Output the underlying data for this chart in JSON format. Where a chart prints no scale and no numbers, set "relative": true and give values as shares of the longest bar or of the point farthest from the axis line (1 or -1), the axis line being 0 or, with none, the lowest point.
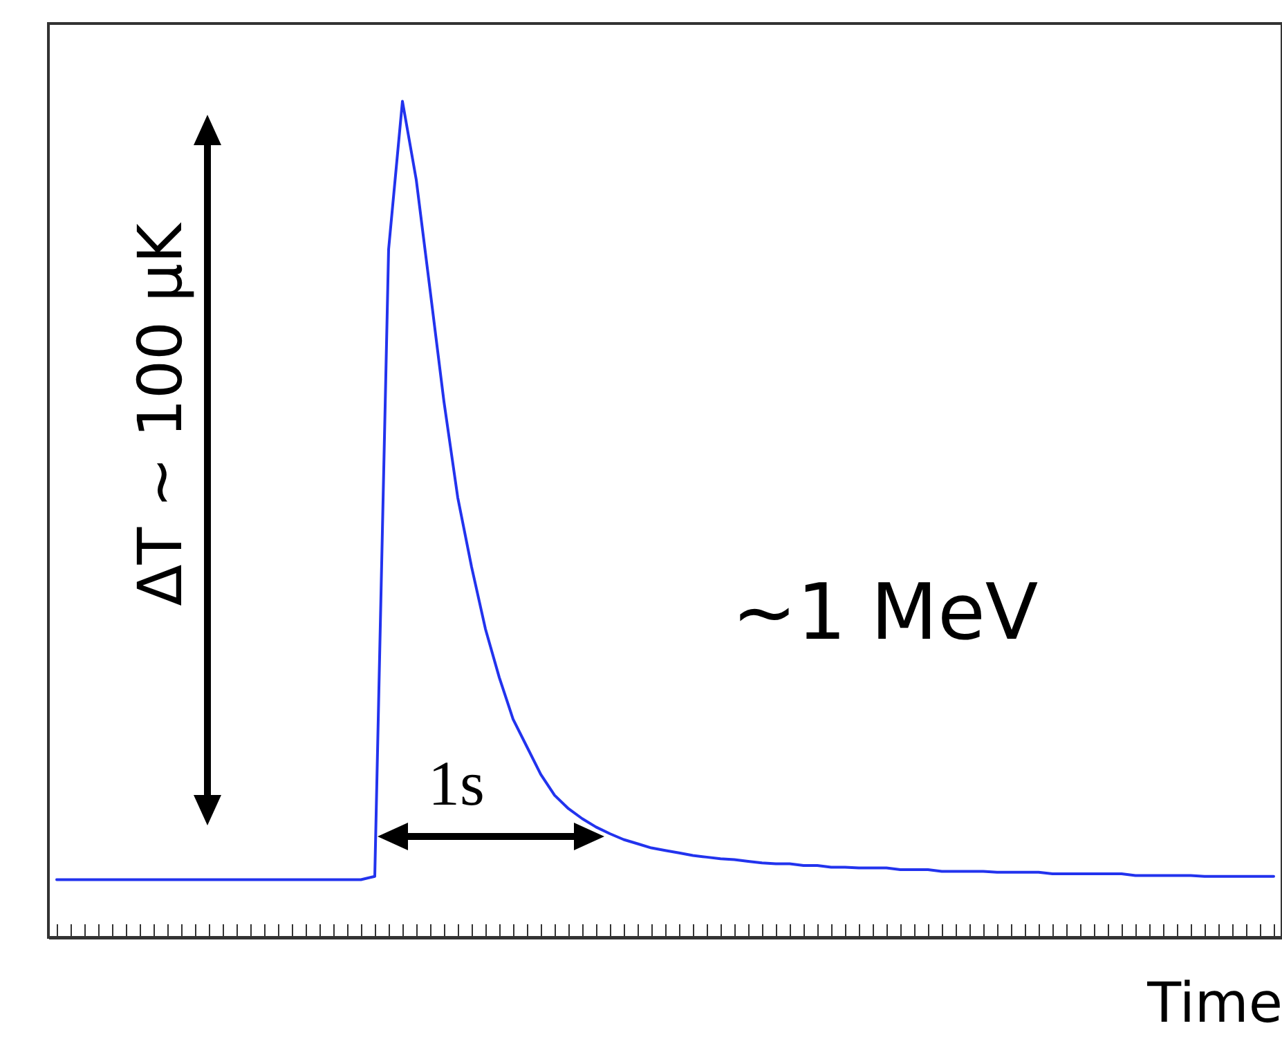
{
  "chart_data": {
    "type": "line",
    "relative": true,
    "xlabel": "Time",
    "categories": [
      null,
      null,
      null,
      null,
      null,
      null,
      null,
      null,
      null,
      null,
      null,
      null,
      null,
      null,
      null,
      null,
      null,
      null,
      null,
      null,
      null,
      null,
      null,
      null,
      null,
      null,
      null,
      null,
      null,
      null,
      null,
      null,
      null,
      null,
      null,
      null,
      null,
      null,
      null,
      null,
      null,
      null,
      null,
      null,
      null,
      null,
      null,
      null,
      null,
      null,
      null,
      null,
      null,
      null,
      null,
      null,
      null,
      null,
      null,
      null,
      null,
      null,
      null,
      null,
      null,
      null,
      null,
      null,
      null,
      null,
      null,
      null,
      null,
      null,
      null,
      null,
      null,
      null,
      null,
      null,
      null,
      null,
      null,
      null,
      null,
      null,
      null,
      null,
      null
    ],
    "series": [
      {
        "color": "#2233ee",
        "values": [
          0.069,
          0.069,
          0.069,
          0.069,
          0.069,
          0.069,
          0.069,
          0.069,
          0.069,
          0.069,
          0.069,
          0.069,
          0.069,
          0.069,
          0.069,
          0.069,
          0.069,
          0.069,
          0.069,
          0.069,
          0.069,
          0.069,
          0.069,
          0.073,
          0.823,
          1,
          0.906,
          0.774,
          0.641,
          0.526,
          0.443,
          0.369,
          0.311,
          0.261,
          0.228,
          0.195,
          0.17,
          0.154,
          0.142,
          0.132,
          0.124,
          0.117,
          0.112,
          0.107,
          0.104,
          0.101,
          0.098,
          0.096,
          0.094,
          0.093,
          0.091,
          0.089,
          0.088,
          0.088,
          0.086,
          0.086,
          0.084,
          0.084,
          0.083,
          0.083,
          0.083,
          0.081,
          0.081,
          0.081,
          0.079,
          0.079,
          0.079,
          0.079,
          0.078,
          0.078,
          0.078,
          0.078,
          0.076,
          0.076,
          0.076,
          0.076,
          0.076,
          0.076,
          0.074,
          0.074,
          0.074,
          0.074,
          0.074,
          0.073,
          0.073,
          0.073,
          0.073,
          0.073,
          0.073
        ]
      }
    ],
    "annotations": [
      "ΔT ~ 100 μK",
      "~1 MeV",
      "1s"
    ],
    "grid": false,
    "marker": "none",
    "line_style": "solid"
  }
}
